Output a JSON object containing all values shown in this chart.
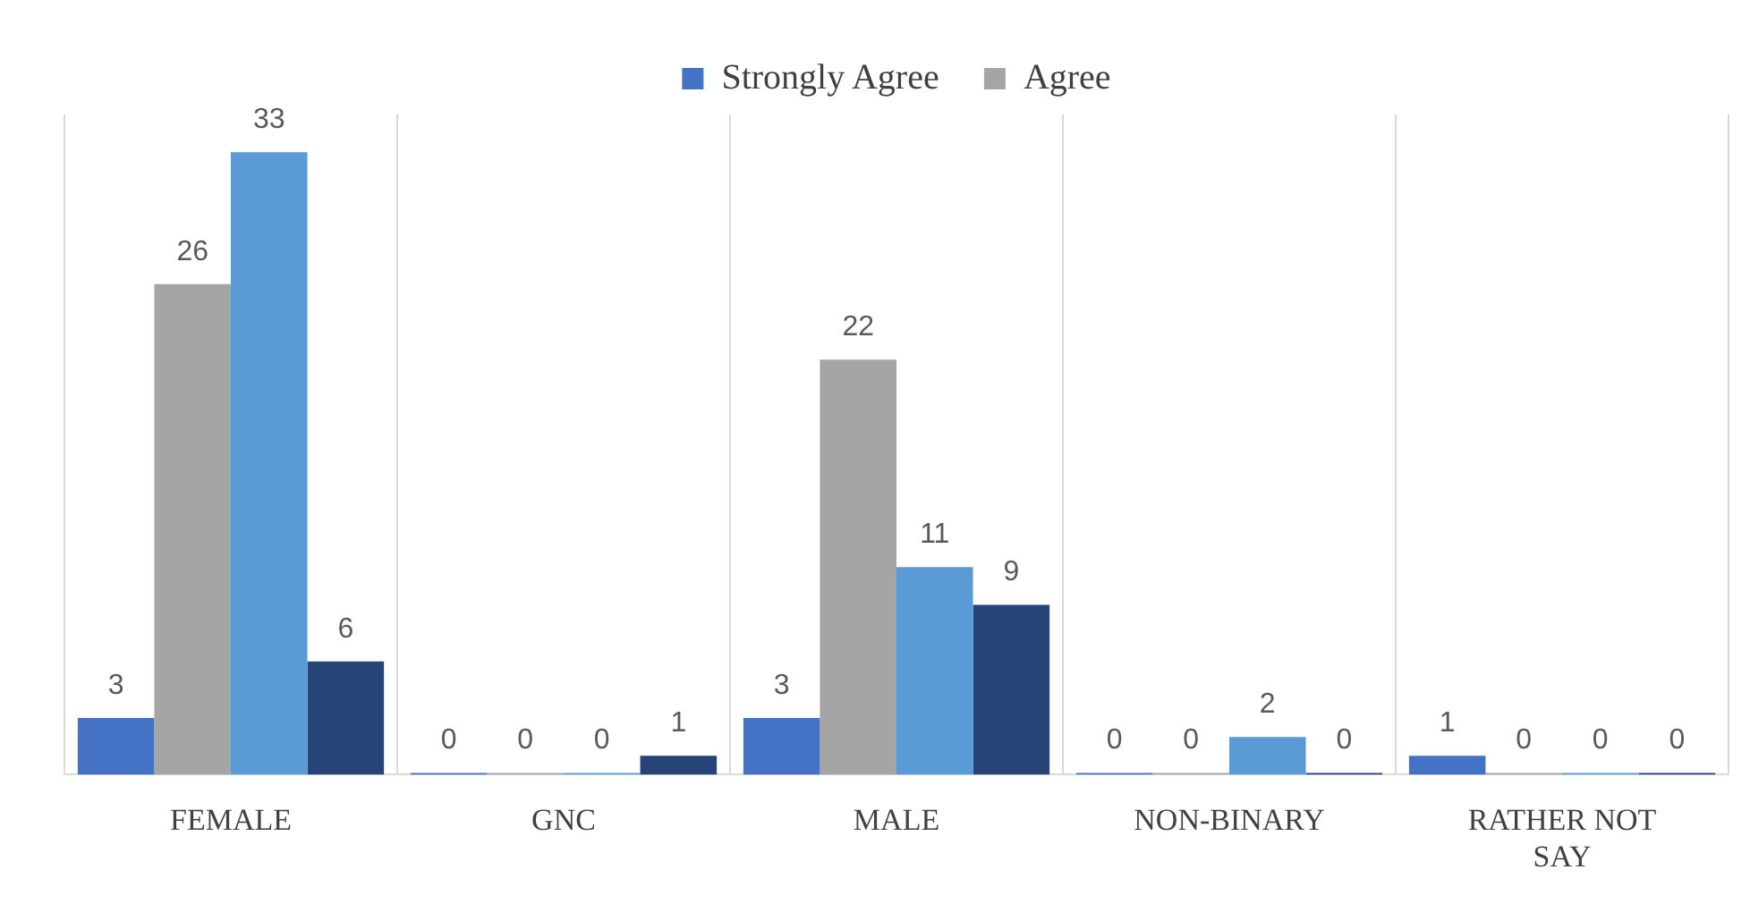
{
  "chart_data": {
    "type": "bar",
    "categories": [
      "FEMALE",
      "GNC",
      "MALE",
      "NON-BINARY",
      "RATHER NOT SAY"
    ],
    "series": [
      {
        "name": "Strongly Agree",
        "color": "#4472c4",
        "values": [
          3,
          0,
          3,
          0,
          1
        ]
      },
      {
        "name": "Agree",
        "color": "#a5a5a5",
        "values": [
          26,
          0,
          22,
          0,
          0
        ]
      },
      {
        "color": "#5b9bd5",
        "values": [
          33,
          0,
          11,
          2,
          0
        ]
      },
      {
        "color": "#264478",
        "values": [
          6,
          1,
          9,
          0,
          0
        ]
      }
    ],
    "ylim": [
      0,
      35
    ],
    "tick_labels": "x",
    "grid": "x",
    "legend": "top",
    "data_labels": true
  }
}
